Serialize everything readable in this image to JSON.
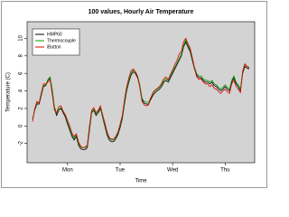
{
  "chart_data": {
    "type": "line",
    "title": "100 values, Hourly Air Temperature",
    "x_label": "Time",
    "y_label": "Temperature (C)",
    "x": [
      0,
      1,
      2,
      3,
      4,
      5,
      6,
      7,
      8,
      9,
      10,
      11,
      12,
      13,
      14,
      15,
      16,
      17,
      18,
      19,
      20,
      21,
      22,
      23,
      24,
      25,
      26,
      27,
      28,
      29,
      30,
      31,
      32,
      33,
      34,
      35,
      36,
      37,
      38,
      39,
      40,
      41,
      42,
      43,
      44,
      45,
      46,
      47,
      48,
      49,
      50,
      51,
      52,
      53,
      54,
      55,
      56,
      57,
      58,
      59,
      60,
      61,
      62,
      63,
      64,
      65,
      66,
      67,
      68,
      69,
      70,
      71,
      72,
      73,
      74,
      75,
      76,
      77,
      78,
      79,
      80,
      81,
      82,
      83,
      84,
      85,
      86,
      87,
      88,
      89,
      90,
      91,
      92,
      93,
      94,
      95,
      96,
      97,
      98,
      99
    ],
    "xlim": [
      -2.5,
      101.5
    ],
    "xticks": [
      {
        "value": 16,
        "label": "Mon"
      },
      {
        "value": 40,
        "label": "Tue"
      },
      {
        "value": 64,
        "label": "Wed"
      },
      {
        "value": 88,
        "label": "Thu"
      }
    ],
    "ylim": [
      -4.2,
      11.9
    ],
    "yticks": [
      -2,
      0,
      2,
      4,
      6,
      8,
      10
    ],
    "legend": "top-left",
    "series": [
      {
        "name": "HMP60",
        "color": "#000000",
        "values": [
          0.8,
          1.8,
          2.5,
          2.5,
          3.5,
          4.5,
          4.6,
          5.2,
          5.5,
          4.0,
          2.0,
          1.2,
          1.8,
          2.0,
          1.5,
          1.0,
          0.2,
          -0.5,
          -1.2,
          -1.6,
          -1.2,
          -2.2,
          -2.6,
          -2.7,
          -2.7,
          -2.5,
          -0.5,
          1.5,
          1.8,
          1.2,
          1.5,
          2.0,
          1.0,
          0.0,
          -1.0,
          -1.6,
          -1.8,
          -1.8,
          -1.5,
          -1.0,
          -0.2,
          0.8,
          2.5,
          4.0,
          5.0,
          5.8,
          6.2,
          6.0,
          5.5,
          4.5,
          3.0,
          2.6,
          2.5,
          2.5,
          3.0,
          3.5,
          3.8,
          4.0,
          4.2,
          4.5,
          5.0,
          5.2,
          5.0,
          5.5,
          6.0,
          6.5,
          7.0,
          7.5,
          8.0,
          9.0,
          9.6,
          9.0,
          8.5,
          7.5,
          6.5,
          5.8,
          5.5,
          5.5,
          5.2,
          5.0,
          5.0,
          4.8,
          5.0,
          4.6,
          4.5,
          4.2,
          4.0,
          4.2,
          4.5,
          4.2,
          4.0,
          5.0,
          5.5,
          4.8,
          4.5,
          4.0,
          6.0,
          6.8,
          6.6,
          6.5
        ]
      },
      {
        "name": "Thermocouple",
        "color": "#00a000",
        "values": [
          0.7,
          1.9,
          2.6,
          2.7,
          3.6,
          4.6,
          4.7,
          5.3,
          5.6,
          4.2,
          2.2,
          1.4,
          1.9,
          2.1,
          1.7,
          1.2,
          0.4,
          -0.3,
          -1.0,
          -1.4,
          -1.0,
          -2.0,
          -2.4,
          -2.5,
          -2.5,
          -2.3,
          -0.3,
          1.6,
          1.9,
          1.4,
          1.7,
          2.1,
          1.1,
          0.2,
          -0.8,
          -1.4,
          -1.6,
          -1.6,
          -1.3,
          -0.8,
          0.0,
          1.0,
          2.7,
          4.2,
          5.2,
          6.0,
          6.4,
          6.2,
          5.7,
          4.7,
          3.2,
          2.8,
          2.7,
          2.7,
          3.2,
          3.7,
          4.0,
          4.2,
          4.4,
          4.7,
          5.2,
          5.4,
          5.2,
          5.7,
          6.2,
          6.7,
          7.2,
          7.7,
          8.2,
          9.2,
          9.8,
          9.2,
          8.7,
          7.7,
          6.7,
          6.0,
          5.7,
          5.7,
          5.4,
          5.2,
          5.2,
          5.0,
          5.2,
          4.8,
          4.7,
          4.4,
          4.2,
          4.4,
          4.7,
          4.4,
          4.2,
          5.2,
          5.7,
          5.0,
          4.7,
          4.2,
          6.2,
          7.0,
          6.8,
          6.7
        ]
      },
      {
        "name": "iButton",
        "color": "#e00000",
        "values": [
          0.5,
          2.0,
          2.8,
          2.6,
          3.8,
          4.8,
          4.8,
          5.0,
          5.3,
          3.6,
          1.8,
          1.5,
          2.2,
          2.3,
          1.6,
          1.3,
          0.6,
          0.0,
          -0.8,
          -1.2,
          -0.9,
          -1.8,
          -2.3,
          -2.5,
          -2.4,
          -2.2,
          0.0,
          1.8,
          2.1,
          1.5,
          1.8,
          2.3,
          1.3,
          0.4,
          -0.6,
          -1.3,
          -1.5,
          -1.5,
          -1.2,
          -0.7,
          0.2,
          1.2,
          3.0,
          4.5,
          5.5,
          6.3,
          6.5,
          6.2,
          5.6,
          4.4,
          2.8,
          2.4,
          2.3,
          2.4,
          3.2,
          3.8,
          4.1,
          4.3,
          4.5,
          4.9,
          5.4,
          5.6,
          5.3,
          5.9,
          6.4,
          7.0,
          7.5,
          8.2,
          8.5,
          9.6,
          10.0,
          9.4,
          8.9,
          7.8,
          6.6,
          5.6,
          5.3,
          5.4,
          5.0,
          4.8,
          4.8,
          4.5,
          4.7,
          4.3,
          4.2,
          3.9,
          3.7,
          4.0,
          4.2,
          3.9,
          3.7,
          4.8,
          5.2,
          4.5,
          4.2,
          3.8,
          6.2,
          7.1,
          6.8,
          6.6
        ]
      }
    ]
  }
}
